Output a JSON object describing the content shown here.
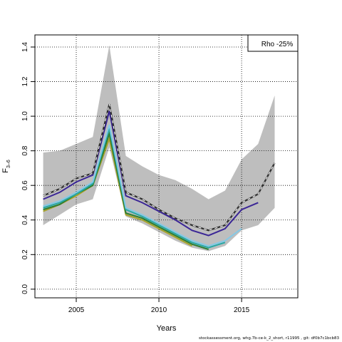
{
  "chart_data": {
    "type": "line",
    "xlabel": "Years",
    "ylabel": "F",
    "ylabel_sub": "3–6",
    "legend": "Rho -25%",
    "legend_position": "top-right",
    "grid": true,
    "xlim": [
      2002.5,
      2018.4
    ],
    "ylim": [
      -0.05,
      1.47
    ],
    "x_ticks": [
      2005,
      2010,
      2015
    ],
    "y_ticks": [
      0.0,
      0.2,
      0.4,
      0.6,
      0.8,
      1.0,
      1.2,
      1.4
    ],
    "band": {
      "color": "#bebebe",
      "x": [
        2003,
        2004,
        2005,
        2006,
        2007,
        2008,
        2009,
        2010,
        2011,
        2012,
        2013,
        2014,
        2015,
        2016,
        2017
      ],
      "upper": [
        0.79,
        0.8,
        0.84,
        0.88,
        1.41,
        0.77,
        0.71,
        0.66,
        0.63,
        0.58,
        0.52,
        0.57,
        0.75,
        0.84,
        1.12
      ],
      "lower": [
        0.37,
        0.43,
        0.49,
        0.52,
        0.82,
        0.42,
        0.38,
        0.33,
        0.28,
        0.24,
        0.22,
        0.25,
        0.34,
        0.37,
        0.47
      ]
    },
    "series": [
      {
        "color": "#2f2f2f",
        "dashed": true,
        "x": [
          2003,
          2004,
          2005,
          2006,
          2007,
          2008,
          2009,
          2010,
          2011,
          2012,
          2013,
          2014,
          2015,
          2016,
          2017
        ],
        "values": [
          0.54,
          0.58,
          0.64,
          0.67,
          1.07,
          0.56,
          0.52,
          0.46,
          0.41,
          0.37,
          0.34,
          0.37,
          0.5,
          0.55,
          0.73
        ]
      },
      {
        "color": "#3b2696",
        "x": [
          2003,
          2004,
          2005,
          2006,
          2007,
          2008,
          2009,
          2010,
          2011,
          2012,
          2013,
          2014,
          2015,
          2016
        ],
        "values": [
          0.52,
          0.56,
          0.62,
          0.66,
          1.03,
          0.54,
          0.5,
          0.45,
          0.4,
          0.34,
          0.31,
          0.35,
          0.46,
          0.5
        ]
      },
      {
        "color": "#84c9e6",
        "x": [
          2003,
          2004,
          2005,
          2006,
          2007,
          2008,
          2009,
          2010,
          2011,
          2012,
          2013,
          2014,
          2015
        ],
        "values": [
          0.48,
          0.51,
          0.56,
          0.62,
          0.95,
          0.47,
          0.43,
          0.38,
          0.33,
          0.28,
          0.25,
          0.28,
          0.35
        ]
      },
      {
        "color": "#26a9a5",
        "x": [
          2003,
          2004,
          2005,
          2006,
          2007,
          2008,
          2009,
          2010,
          2011,
          2012,
          2013,
          2014
        ],
        "values": [
          0.47,
          0.5,
          0.55,
          0.61,
          0.93,
          0.46,
          0.42,
          0.37,
          0.32,
          0.27,
          0.24,
          0.27
        ]
      },
      {
        "color": "#2e7d32",
        "x": [
          2003,
          2004,
          2005,
          2006,
          2007,
          2008,
          2009,
          2010,
          2011,
          2012,
          2013
        ],
        "values": [
          0.46,
          0.49,
          0.55,
          0.6,
          0.9,
          0.44,
          0.41,
          0.36,
          0.31,
          0.26,
          0.23
        ]
      },
      {
        "color": "#a8a32a",
        "x": [
          2003,
          2004,
          2005,
          2006,
          2007,
          2008,
          2009,
          2010,
          2011,
          2012
        ],
        "values": [
          0.45,
          0.49,
          0.54,
          0.6,
          0.87,
          0.43,
          0.4,
          0.35,
          0.3,
          0.25
        ]
      }
    ]
  },
  "footer": "stockassessment.org, whg.7b-ce-k_2_short, r11995 , git: df0b7c1bcb83"
}
